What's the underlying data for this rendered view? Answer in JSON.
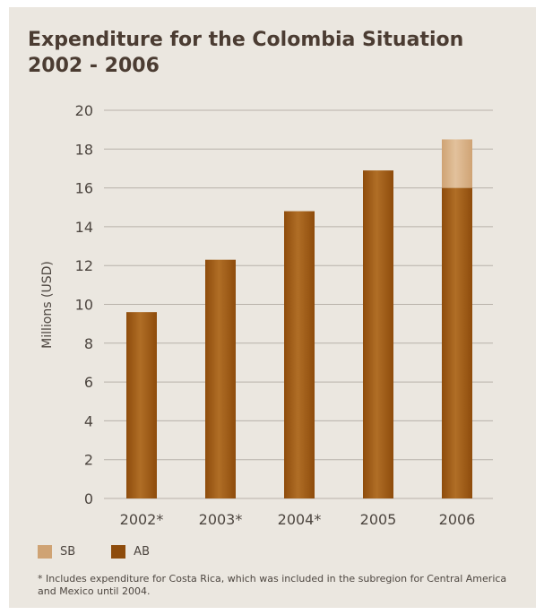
{
  "title_lines": [
    "Expenditure for the Colombia Situation",
    "2002 - 2006"
  ],
  "footnote": "* Includes expenditure for Costa Rica, which was included in the subregion for Central America and Mexico until 2004.",
  "colors": {
    "AB": "#8e4c0c",
    "AB_light": "#b06e26",
    "SB": "#cfa374",
    "SB_light": "#e2c19c",
    "grid": "#b8b2aa",
    "title": "#4b3c32"
  },
  "chart_data": {
    "type": "bar",
    "stacked": true,
    "title": "Expenditure for the Colombia Situation 2002 - 2006",
    "ylabel": "Millions (USD)",
    "xlabel": "",
    "ylim": [
      0,
      20
    ],
    "yticks": [
      0,
      2,
      4,
      6,
      8,
      10,
      12,
      14,
      16,
      18,
      20
    ],
    "grid": true,
    "legend_position": "bottom-left",
    "categories": [
      "2002*",
      "2003*",
      "2004*",
      "2005",
      "2006"
    ],
    "series": [
      {
        "name": "AB",
        "values": [
          9.6,
          12.3,
          14.8,
          16.9,
          16.0
        ]
      },
      {
        "name": "SB",
        "values": [
          0,
          0,
          0,
          0,
          2.5
        ]
      }
    ],
    "legend_order": [
      "SB",
      "AB"
    ]
  }
}
